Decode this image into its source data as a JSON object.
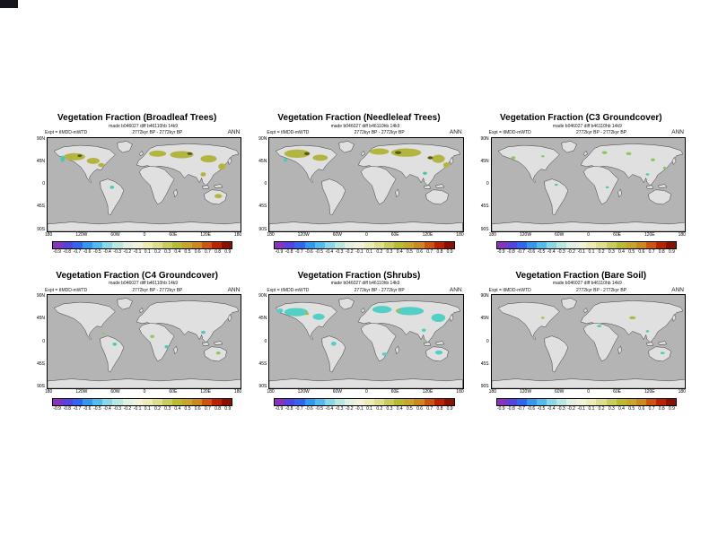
{
  "figure": {
    "season": "ANN",
    "made_line": "made b046027 diff b46110hb 14k9",
    "expt_line": "Expt = tIMDD-mWTD",
    "period_line": "2772kyr BP - 2772kyr BP"
  },
  "panels": [
    {
      "title": "Vegetation Fraction (Broadleaf Trees)"
    },
    {
      "title": "Vegetation Fraction (Needleleaf Trees)"
    },
    {
      "title": "Vegetation Fraction (C3 Groundcover)"
    },
    {
      "title": "Vegetation Fraction (C4 Groundcover)"
    },
    {
      "title": "Vegetation Fraction (Shrubs)"
    },
    {
      "title": "Vegetation Fraction (Bare Soil)"
    }
  ],
  "axes": {
    "lat": [
      "90N",
      "45N",
      "0",
      "45S",
      "90S"
    ],
    "lon": [
      "180",
      "120W",
      "60W",
      "0",
      "60E",
      "120E",
      "180"
    ]
  },
  "colorbar": {
    "labels": [
      "-0.9",
      "-0.8",
      "-0.7",
      "-0.6",
      "-0.5",
      "-0.4",
      "-0.3",
      "-0.2",
      "-0.1",
      "0.1",
      "0.2",
      "0.3",
      "0.4",
      "0.5",
      "0.6",
      "0.7",
      "0.8",
      "0.9"
    ],
    "colors": [
      "#8833bb",
      "#5544dd",
      "#3366ee",
      "#3399ee",
      "#55bbee",
      "#88d8e8",
      "#b8e8e0",
      "#e0f0e4",
      "#f2f2dc",
      "#ecedb4",
      "#dede8e",
      "#cccc5e",
      "#bbbb33",
      "#c8a62e",
      "#cc8822",
      "#cc5511",
      "#bb2200",
      "#881100"
    ]
  },
  "map_colors": {
    "ocean": "#b4b4b4",
    "land": "#e0e0e0",
    "coast": "#000000"
  }
}
